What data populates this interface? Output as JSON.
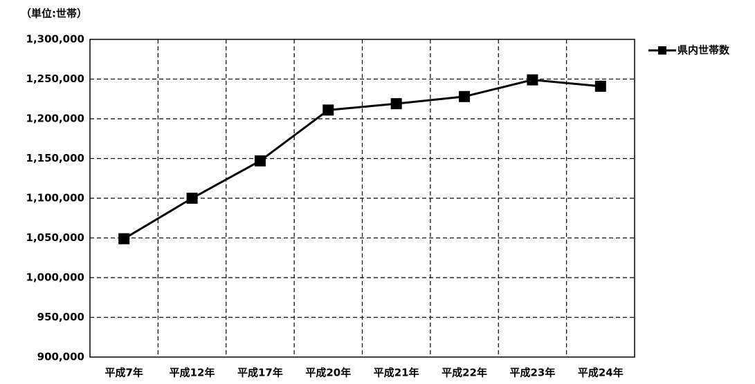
{
  "chart_data": {
    "type": "line",
    "subtitle": "（単位:世帯）",
    "categories": [
      "平成7年",
      "平成12年",
      "平成17年",
      "平成20年",
      "平成21年",
      "平成22年",
      "平成23年",
      "平成24年"
    ],
    "series": [
      {
        "name": "県内世帯数",
        "color": "#000000",
        "values": [
          1049000,
          1100000,
          1147000,
          1211000,
          1219000,
          1228000,
          1249000,
          1241000
        ]
      }
    ],
    "ylim": [
      900000,
      1300000
    ],
    "yticks": [
      {
        "value": 900000,
        "label": "900,000"
      },
      {
        "value": 950000,
        "label": "950,000"
      },
      {
        "value": 1000000,
        "label": "1,000,000"
      },
      {
        "value": 1050000,
        "label": "1,050,000"
      },
      {
        "value": 1100000,
        "label": "1,100,000"
      },
      {
        "value": 1150000,
        "label": "1,150,000"
      },
      {
        "value": 1200000,
        "label": "1,200,000"
      },
      {
        "value": 1250000,
        "label": "1,250,000"
      },
      {
        "value": 1300000,
        "label": "1,300,000"
      }
    ],
    "grid": true,
    "legend": "right"
  }
}
